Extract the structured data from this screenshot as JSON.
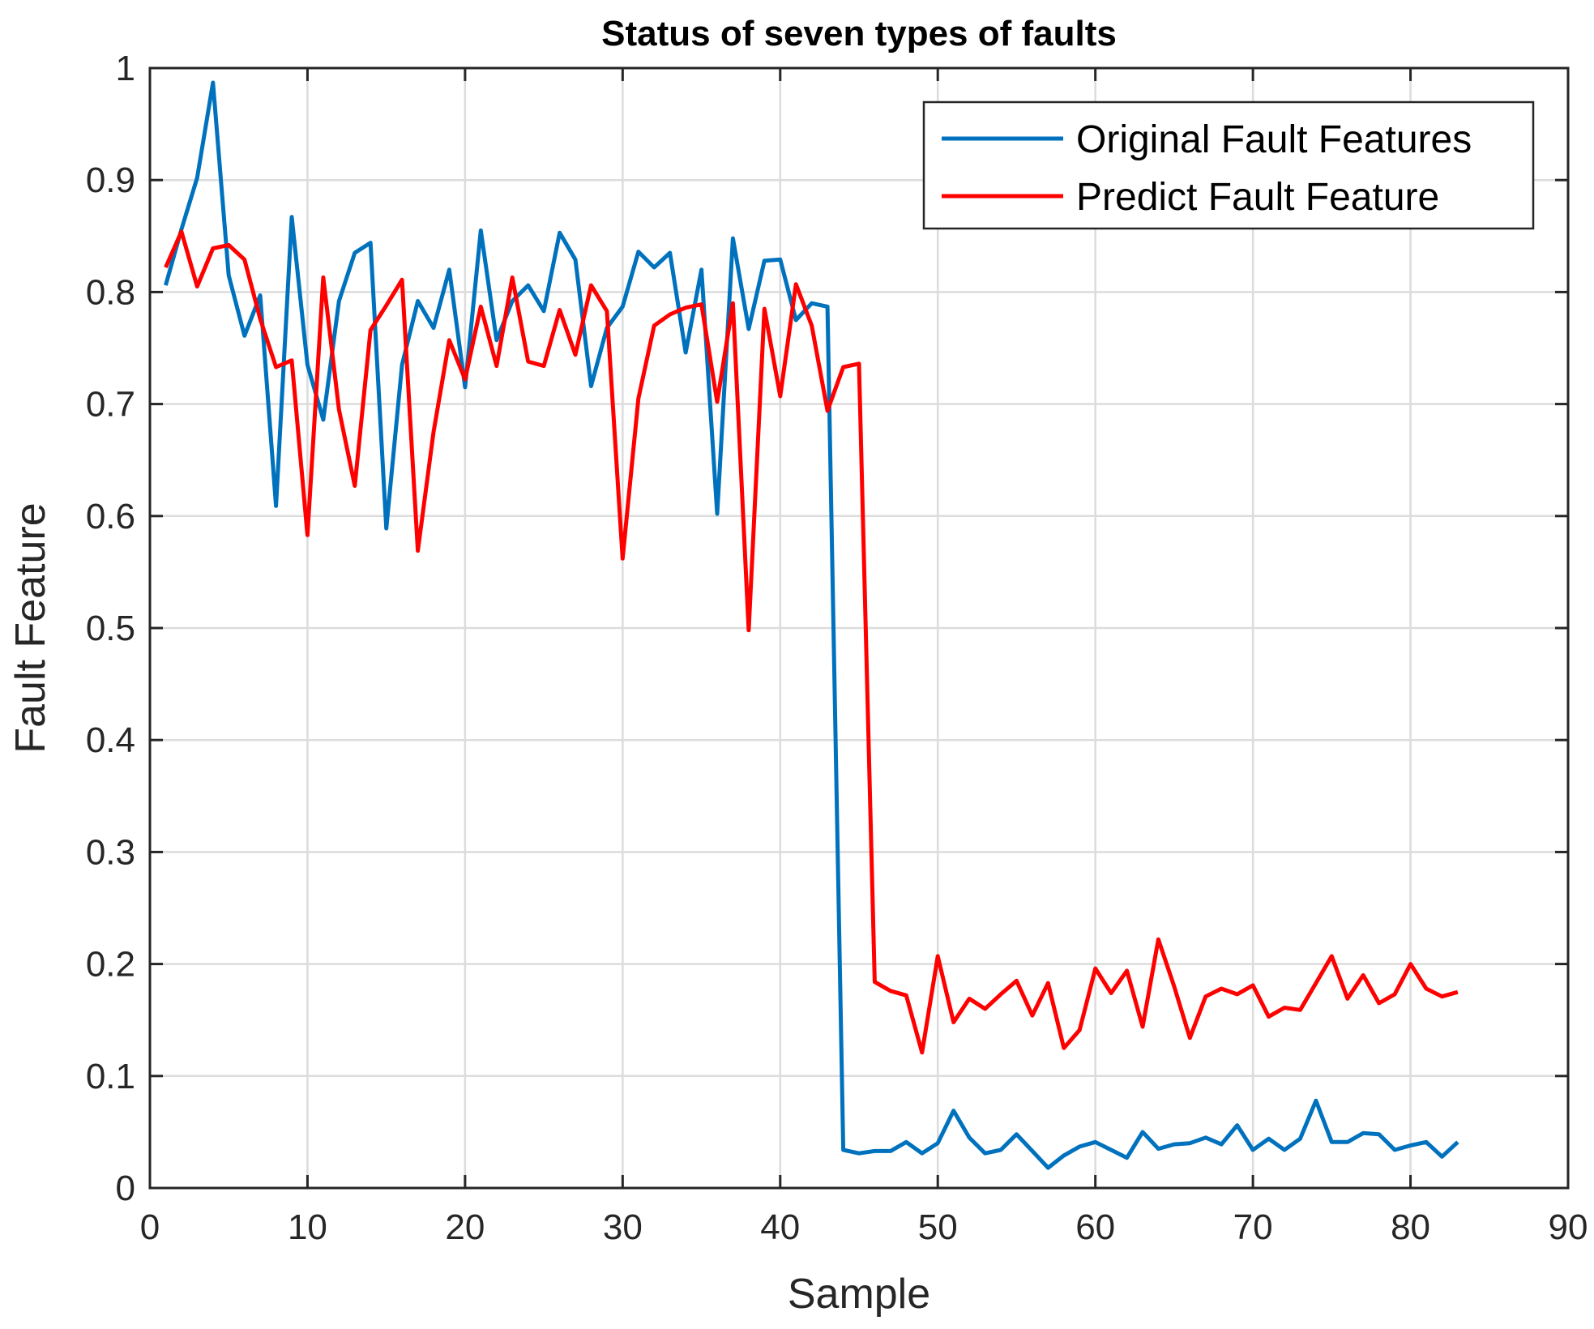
{
  "chart_data": {
    "type": "line",
    "title": "Status of seven types of faults",
    "xlabel": "Sample",
    "ylabel": "Fault Feature",
    "xlim": [
      0,
      90
    ],
    "ylim": [
      0,
      1
    ],
    "xticks": [
      0,
      10,
      20,
      30,
      40,
      50,
      60,
      70,
      80,
      90
    ],
    "yticks": [
      0,
      0.1,
      0.2,
      0.3,
      0.4,
      0.5,
      0.6,
      0.7,
      0.8,
      0.9,
      1
    ],
    "xtick_labels": [
      "0",
      "10",
      "20",
      "30",
      "40",
      "50",
      "60",
      "70",
      "80",
      "90"
    ],
    "ytick_labels": [
      "0",
      "0.1",
      "0.2",
      "0.3",
      "0.4",
      "0.5",
      "0.6",
      "0.7",
      "0.8",
      "0.9",
      "1"
    ],
    "grid": true,
    "legend_position": "top-right",
    "series": [
      {
        "name": "Original Fault Features",
        "color": "#0072bd",
        "x": [
          1,
          2,
          3,
          4,
          5,
          6,
          7,
          8,
          9,
          10,
          11,
          12,
          13,
          14,
          15,
          16,
          17,
          18,
          19,
          20,
          21,
          22,
          23,
          24,
          25,
          26,
          27,
          28,
          29,
          30,
          31,
          32,
          33,
          34,
          35,
          36,
          37,
          38,
          39,
          40,
          41,
          42,
          43,
          44,
          45,
          46,
          47,
          48,
          49,
          50,
          51,
          52,
          53,
          54,
          55,
          56,
          57,
          58,
          59,
          60,
          61,
          62,
          63,
          64,
          65,
          66,
          67,
          68,
          69,
          70,
          71,
          72,
          73,
          74,
          75,
          76,
          77,
          78,
          79,
          80,
          81,
          82,
          83
        ],
        "values": [
          0.806,
          0.856,
          0.902,
          0.987,
          0.815,
          0.761,
          0.797,
          0.609,
          0.867,
          0.735,
          0.686,
          0.792,
          0.835,
          0.844,
          0.589,
          0.735,
          0.792,
          0.768,
          0.82,
          0.715,
          0.855,
          0.757,
          0.792,
          0.806,
          0.783,
          0.853,
          0.829,
          0.716,
          0.768,
          0.787,
          0.836,
          0.822,
          0.835,
          0.746,
          0.82,
          0.602,
          0.848,
          0.767,
          0.828,
          0.829,
          0.775,
          0.79,
          0.787,
          0.034,
          0.031,
          0.033,
          0.033,
          0.041,
          0.031,
          0.04,
          0.069,
          0.045,
          0.031,
          0.034,
          0.048,
          0.033,
          0.018,
          0.029,
          0.037,
          0.041,
          0.034,
          0.027,
          0.05,
          0.035,
          0.039,
          0.04,
          0.045,
          0.039,
          0.056,
          0.034,
          0.044,
          0.034,
          0.044,
          0.078,
          0.041,
          0.041,
          0.049,
          0.048,
          0.034,
          0.038,
          0.041,
          0.028,
          0.041
        ]
      },
      {
        "name": "Predict Fault Feature",
        "color": "#ff0000",
        "x": [
          1,
          2,
          3,
          4,
          5,
          6,
          7,
          8,
          9,
          10,
          11,
          12,
          13,
          14,
          15,
          16,
          17,
          18,
          19,
          20,
          21,
          22,
          23,
          24,
          25,
          26,
          27,
          28,
          29,
          30,
          31,
          32,
          33,
          34,
          35,
          36,
          37,
          38,
          39,
          40,
          41,
          42,
          43,
          44,
          45,
          46,
          47,
          48,
          49,
          50,
          51,
          52,
          53,
          54,
          55,
          56,
          57,
          58,
          59,
          60,
          61,
          62,
          63,
          64,
          65,
          66,
          67,
          68,
          69,
          70,
          71,
          72,
          73,
          74,
          75,
          76,
          77,
          78,
          79,
          80,
          81,
          82,
          83
        ],
        "values": [
          0.822,
          0.854,
          0.805,
          0.839,
          0.842,
          0.829,
          0.776,
          0.733,
          0.739,
          0.583,
          0.813,
          0.695,
          0.627,
          0.766,
          0.788,
          0.811,
          0.569,
          0.675,
          0.757,
          0.722,
          0.787,
          0.734,
          0.813,
          0.738,
          0.734,
          0.784,
          0.744,
          0.806,
          0.783,
          0.562,
          0.705,
          0.77,
          0.78,
          0.786,
          0.789,
          0.702,
          0.79,
          0.498,
          0.785,
          0.707,
          0.807,
          0.77,
          0.694,
          0.733,
          0.736,
          0.184,
          0.176,
          0.172,
          0.121,
          0.207,
          0.148,
          0.169,
          0.16,
          0.173,
          0.185,
          0.154,
          0.183,
          0.125,
          0.141,
          0.196,
          0.174,
          0.194,
          0.144,
          0.222,
          0.18,
          0.134,
          0.171,
          0.178,
          0.173,
          0.181,
          0.153,
          0.161,
          0.159,
          0.183,
          0.207,
          0.169,
          0.19,
          0.165,
          0.173,
          0.2,
          0.178,
          0.171,
          0.175
        ]
      }
    ]
  }
}
